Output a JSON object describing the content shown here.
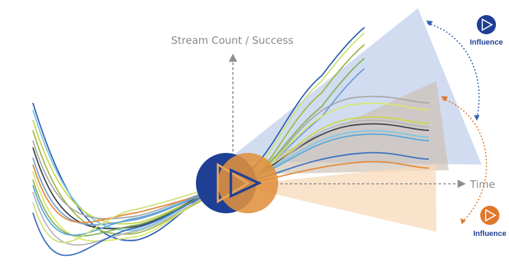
{
  "labels": {
    "vertical_axis": "Stream Count / Success",
    "horizontal_axis": "Time",
    "influence_top": "Influence",
    "influence_bottom": "Influence"
  },
  "colors": {
    "navy": "#1f3f95",
    "orange": "#e0782a",
    "blue_cone": "#b9c8e6",
    "taupe_cone": "#c9b8a6",
    "peach_cone": "#f6d6b4",
    "axis_gray": "#8a8a8a"
  },
  "icons": {
    "center": "play-icon",
    "top": "play-icon",
    "bottom": "play-icon"
  },
  "stream_colors": [
    "#2f5fb5",
    "#7bc7e6",
    "#c9d84a",
    "#9db84a",
    "#a8a8a8",
    "#3f4348",
    "#6f9fd6",
    "#e48a3a",
    "#d8e86a",
    "#86b35a",
    "#5aa7d8",
    "#b5b5b5",
    "#cfe07a",
    "#3c6fc0"
  ]
}
